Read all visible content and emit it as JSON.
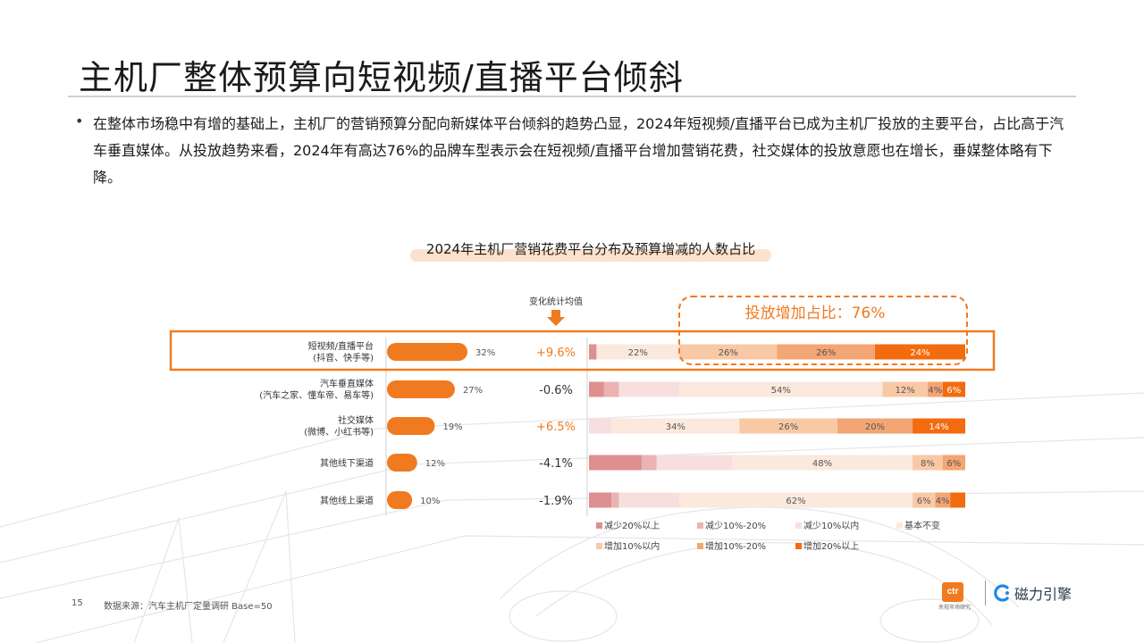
{
  "page": {
    "title": "主机厂整体预算向短视频/直播平台倾斜",
    "bullet": "在整体市场稳中有增的基础上，主机厂的营销预算分配向新媒体平台倾斜的趋势凸显，2024年短视频/直播平台已成为主机厂投放的主要平台，占比高于汽车垂直媒体。从投放趋势来看，2024年有高达76%的品牌车型表示会在短视频/直播平台增加营销花费，社交媒体的投放意愿也在增长，垂媒整体略有下降。",
    "page_number": "15",
    "source": "数据来源：汽车主机厂定量调研 Base=50",
    "logo_ctr": "ctr",
    "logo_ctr_sub": "央视市场研究",
    "logo_name": "磁力引擎"
  },
  "chart_data": {
    "type": "bar",
    "title": "2024年主机厂营销花费平台分布及预算增减的人数占比",
    "categories": [
      {
        "name": "短视频/直播平台",
        "sub": "(抖音、快手等)"
      },
      {
        "name": "汽车垂直媒体",
        "sub": "(汽车之家、懂车帝、易车等)"
      },
      {
        "name": "社交媒体",
        "sub": "(微博、小红书等)"
      },
      {
        "name": "其他线下渠道",
        "sub": ""
      },
      {
        "name": "其他线上渠道",
        "sub": ""
      }
    ],
    "share": {
      "values": [
        32,
        27,
        19,
        12,
        10
      ],
      "labels": [
        "32%",
        "27%",
        "19%",
        "12%",
        "10%"
      ]
    },
    "change": {
      "header": "变化统计均值",
      "values": [
        "+9.6%",
        "-0.6%",
        "+6.5%",
        "-4.1%",
        "-1.9%"
      ],
      "colors": [
        "#f07a1f",
        "#333333",
        "#f07a1f",
        "#333333",
        "#333333"
      ]
    },
    "stacked": {
      "series": [
        {
          "name": "减少20%以上",
          "color": "#de8f8f",
          "values": [
            2,
            4,
            0,
            14,
            6
          ]
        },
        {
          "name": "减少10%-20%",
          "color": "#ebb3b3",
          "values": [
            0,
            4,
            0,
            4,
            2
          ]
        },
        {
          "name": "减少10%以内",
          "color": "#f7dfe0",
          "values": [
            0,
            16,
            6,
            20,
            16
          ]
        },
        {
          "name": "基本不变",
          "color": "#fbe9de",
          "values": [
            22,
            54,
            34,
            48,
            62
          ]
        },
        {
          "name": "增加10%以内",
          "color": "#f9c9a6",
          "values": [
            26,
            12,
            26,
            8,
            6
          ]
        },
        {
          "name": "增加10%-20%",
          "color": "#f4a574",
          "values": [
            26,
            4,
            20,
            6,
            4
          ]
        },
        {
          "name": "增加20%以上",
          "color": "#f26b0f",
          "values": [
            24,
            6,
            14,
            0,
            4
          ]
        }
      ],
      "labels": [
        [
          "",
          "",
          "",
          "22%",
          "26%",
          "26%",
          "24%"
        ],
        [
          "",
          "",
          "",
          "54%",
          "12%",
          "4%",
          "6%"
        ],
        [
          "",
          "",
          "",
          "34%",
          "26%",
          "20%",
          "14%"
        ],
        [
          "",
          "",
          "",
          "48%",
          "8%",
          "6%",
          ""
        ],
        [
          "",
          "",
          "",
          "62%",
          "6%",
          "4%",
          ""
        ]
      ]
    },
    "callout": "投放增加占比：76%",
    "highlight_row": 0,
    "colors": {
      "accent": "#f07a1f",
      "share_bar": "#f07a1f"
    }
  }
}
